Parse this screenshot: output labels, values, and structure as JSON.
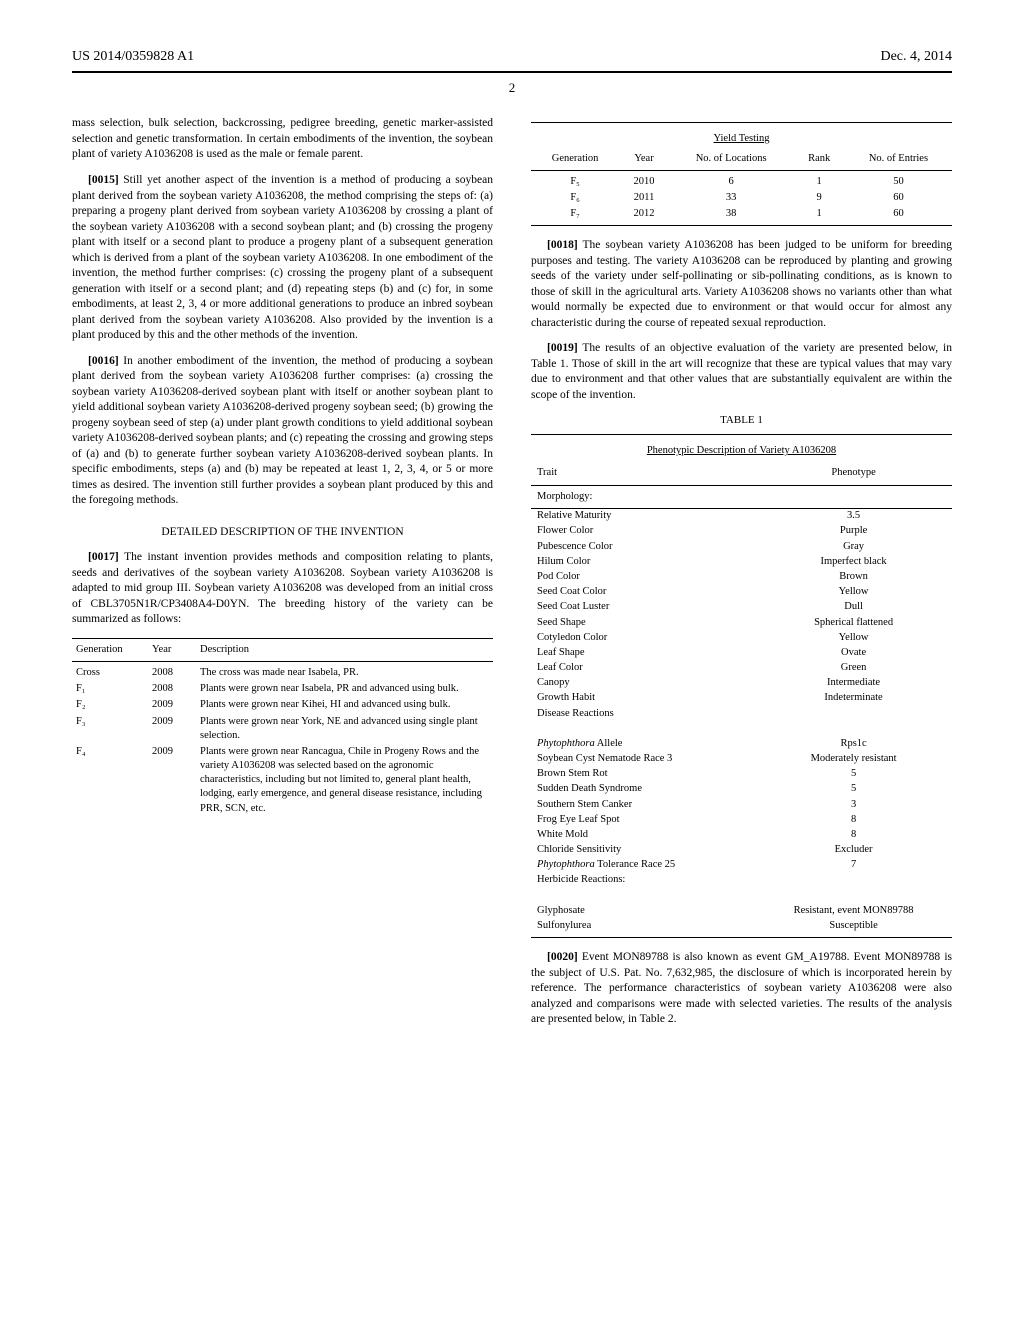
{
  "header": {
    "doc_number": "US 2014/0359828 A1",
    "date": "Dec. 4, 2014",
    "page_number": "2"
  },
  "left": {
    "intro": "mass selection, bulk selection, backcrossing, pedigree breeding, genetic marker-assisted selection and genetic transformation. In certain embodiments of the invention, the soybean plant of variety A1036208 is used as the male or female parent.",
    "p0015_num": "[0015]",
    "p0015": " Still yet another aspect of the invention is a method of producing a soybean plant derived from the soybean variety A1036208, the method comprising the steps of: (a) preparing a progeny plant derived from soybean variety A1036208 by crossing a plant of the soybean variety A1036208 with a second soybean plant; and (b) crossing the progeny plant with itself or a second plant to produce a progeny plant of a subsequent generation which is derived from a plant of the soybean variety A1036208. In one embodiment of the invention, the method further comprises: (c) crossing the progeny plant of a subsequent generation with itself or a second plant; and (d) repeating steps (b) and (c) for, in some embodiments, at least 2, 3, 4 or more additional generations to produce an inbred soybean plant derived from the soybean variety A1036208. Also provided by the invention is a plant produced by this and the other methods of the invention.",
    "p0016_num": "[0016]",
    "p0016": " In another embodiment of the invention, the method of producing a soybean plant derived from the soybean variety A1036208 further comprises: (a) crossing the soybean variety A1036208-derived soybean plant with itself or another soybean plant to yield additional soybean variety A1036208-derived progeny soybean seed; (b) growing the progeny soybean seed of step (a) under plant growth conditions to yield additional soybean variety A1036208-derived soybean plants; and (c) repeating the crossing and growing steps of (a) and (b) to generate further soybean variety A1036208-derived soybean plants. In specific embodiments, steps (a) and (b) may be repeated at least 1, 2, 3, 4, or 5 or more times as desired. The invention still further provides a soybean plant produced by this and the foregoing methods.",
    "detailed_heading": "DETAILED DESCRIPTION OF THE INVENTION",
    "p0017_num": "[0017]",
    "p0017": " The instant invention provides methods and composition relating to plants, seeds and derivatives of the soybean variety A1036208. Soybean variety A1036208 is adapted to mid group III. Soybean variety A1036208 was developed from an initial cross of CBL3705N1R/CP3408A4-D0YN. The breeding history of the variety can be summarized as follows:",
    "breeding": {
      "cols": [
        "Generation",
        "Year",
        "Description"
      ],
      "rows": [
        {
          "gen": "Cross",
          "year": "2008",
          "desc": "The cross was made near Isabela, PR."
        },
        {
          "gen": "F₁",
          "year": "2008",
          "desc": "Plants were grown near Isabela, PR and advanced using bulk."
        },
        {
          "gen": "F₂",
          "year": "2009",
          "desc": "Plants were grown near Kihei, HI and advanced using bulk."
        },
        {
          "gen": "F₃",
          "year": "2009",
          "desc": "Plants were grown near York, NE and advanced using single plant selection."
        },
        {
          "gen": "F₄",
          "year": "2009",
          "desc": "Plants were grown near Rancagua, Chile in Progeny Rows and the variety A1036208 was selected based on the agronomic characteristics, including but not limited to, general plant health, lodging, early emergence, and general disease resistance, including PRR, SCN, etc."
        }
      ]
    }
  },
  "right": {
    "yield": {
      "title": "Yield Testing",
      "cols": [
        "Generation",
        "Year",
        "No. of Locations",
        "Rank",
        "No. of Entries"
      ],
      "rows": [
        {
          "gen": "F₅",
          "year": "2010",
          "loc": "6",
          "rank": "1",
          "entries": "50"
        },
        {
          "gen": "F₆",
          "year": "2011",
          "loc": "33",
          "rank": "9",
          "entries": "60"
        },
        {
          "gen": "F₇",
          "year": "2012",
          "loc": "38",
          "rank": "1",
          "entries": "60"
        }
      ]
    },
    "p0018_num": "[0018]",
    "p0018": " The soybean variety A1036208 has been judged to be uniform for breeding purposes and testing. The variety A1036208 can be reproduced by planting and growing seeds of the variety under self-pollinating or sib-pollinating conditions, as is known to those of skill in the agricultural arts. Variety A1036208 shows no variants other than what would normally be expected due to environment or that would occur for almost any characteristic during the course of repeated sexual reproduction.",
    "p0019_num": "[0019]",
    "p0019": " The results of an objective evaluation of the variety are presented below, in Table 1. Those of skill in the art will recognize that these are typical values that may vary due to environment and that other values that are substantially equivalent are within the scope of the invention.",
    "table1_label": "TABLE 1",
    "pheno": {
      "title": "Phenotypic Description of Variety A1036208",
      "col_trait": "Trait",
      "col_pheno": "Phenotype",
      "morph": "Morphology:",
      "morphology": [
        {
          "t": "Relative Maturity",
          "p": "3.5"
        },
        {
          "t": "Flower Color",
          "p": "Purple"
        },
        {
          "t": "Pubescence Color",
          "p": "Gray"
        },
        {
          "t": "Hilum Color",
          "p": "Imperfect black"
        },
        {
          "t": "Pod Color",
          "p": "Brown"
        },
        {
          "t": "Seed Coat Color",
          "p": "Yellow"
        },
        {
          "t": "Seed Coat Luster",
          "p": "Dull"
        },
        {
          "t": "Seed Shape",
          "p": "Spherical flattened"
        },
        {
          "t": "Cotyledon Color",
          "p": "Yellow"
        },
        {
          "t": "Leaf Shape",
          "p": "Ovate"
        },
        {
          "t": "Leaf Color",
          "p": "Green"
        },
        {
          "t": "Canopy",
          "p": "Intermediate"
        },
        {
          "t": "Growth Habit",
          "p": "Indeterminate"
        }
      ],
      "disease_label": "Disease Reactions",
      "diseases": [
        {
          "t": "Phytophthora Allele",
          "t_italic": "Phytophthora",
          "t_rest": " Allele",
          "p": "Rps1c"
        },
        {
          "t": "Soybean Cyst Nematode Race 3",
          "p": "Moderately resistant"
        },
        {
          "t": "Brown Stem Rot",
          "p": "5"
        },
        {
          "t": "Sudden Death Syndrome",
          "p": "5"
        },
        {
          "t": "Southern Stem Canker",
          "p": "3"
        },
        {
          "t": "Frog Eye Leaf Spot",
          "p": "8"
        },
        {
          "t": "White Mold",
          "p": "8"
        },
        {
          "t": "Chloride Sensitivity",
          "p": "Excluder"
        },
        {
          "t": "Phytophthora Tolerance Race 25",
          "t_italic": "Phytophthora",
          "t_rest": " Tolerance Race 25",
          "p": "7"
        }
      ],
      "herbicide_label": "Herbicide Reactions:",
      "herbicides": [
        {
          "t": "Glyphosate",
          "p": "Resistant, event MON89788"
        },
        {
          "t": "Sulfonylurea",
          "p": "Susceptible"
        }
      ]
    },
    "p0020_num": "[0020]",
    "p0020": " Event MON89788 is also known as event GM_A19788. Event MON89788 is the subject of U.S. Pat. No. 7,632,985, the disclosure of which is incorporated herein by reference. The performance characteristics of soybean variety A1036208 were also analyzed and comparisons were made with selected varieties. The results of the analysis are presented below, in Table 2."
  }
}
